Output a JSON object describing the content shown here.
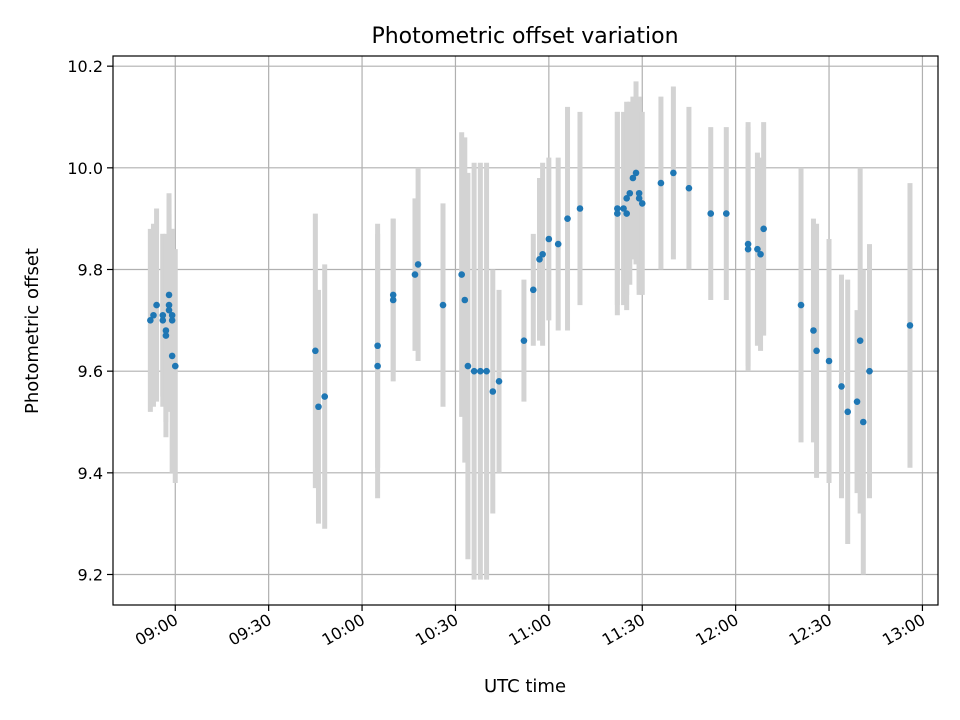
{
  "chart_data": {
    "type": "scatter",
    "title": "Photometric offset variation",
    "xlabel": "UTC time",
    "ylabel": "Photometric offset",
    "xlim": [
      "08:40",
      "13:05"
    ],
    "ylim": [
      9.14,
      10.22
    ],
    "x_ticks": [
      "09:00",
      "09:30",
      "10:00",
      "10:30",
      "11:00",
      "11:30",
      "12:00",
      "12:30",
      "13:00"
    ],
    "y_ticks": [
      9.2,
      9.4,
      9.6,
      9.8,
      10.0,
      10.2
    ],
    "grid": true,
    "colors": {
      "points": "#1f77b4",
      "errorbars": "#d3d3d3"
    },
    "series": [
      {
        "x": [
          "08:52",
          "08:53",
          "08:54",
          "08:56",
          "08:56",
          "08:57",
          "08:57",
          "08:58",
          "08:58",
          "08:58",
          "08:59",
          "08:59",
          "08:59",
          "09:00",
          "09:45",
          "09:46",
          "09:48",
          "10:05",
          "10:05",
          "10:10",
          "10:10",
          "10:17",
          "10:18",
          "10:26",
          "10:32",
          "10:33",
          "10:34",
          "10:36",
          "10:38",
          "10:40",
          "10:42",
          "10:44",
          "10:52",
          "10:55",
          "10:57",
          "10:58",
          "11:00",
          "11:03",
          "11:06",
          "11:10",
          "11:22",
          "11:22",
          "11:24",
          "11:25",
          "11:25",
          "11:26",
          "11:27",
          "11:28",
          "11:29",
          "11:29",
          "11:30",
          "11:36",
          "11:40",
          "11:45",
          "11:52",
          "11:57",
          "12:04",
          "12:04",
          "12:07",
          "12:08",
          "12:09",
          "12:21",
          "12:25",
          "12:26",
          "12:30",
          "12:34",
          "12:36",
          "12:39",
          "12:40",
          "12:41",
          "12:43",
          "12:56"
        ],
        "y": [
          9.7,
          9.71,
          9.73,
          9.71,
          9.7,
          9.67,
          9.68,
          9.73,
          9.72,
          9.75,
          9.71,
          9.7,
          9.63,
          9.61,
          9.64,
          9.53,
          9.55,
          9.65,
          9.61,
          9.75,
          9.74,
          9.79,
          9.81,
          9.73,
          9.79,
          9.74,
          9.61,
          9.6,
          9.6,
          9.6,
          9.56,
          9.58,
          9.66,
          9.76,
          9.82,
          9.83,
          9.86,
          9.85,
          9.9,
          9.92,
          9.92,
          9.91,
          9.92,
          9.91,
          9.94,
          9.95,
          9.98,
          9.99,
          9.95,
          9.94,
          9.93,
          9.97,
          9.99,
          9.96,
          9.91,
          9.91,
          9.85,
          9.84,
          9.84,
          9.83,
          9.88,
          9.73,
          9.68,
          9.64,
          9.62,
          9.57,
          9.52,
          9.54,
          9.66,
          9.5,
          9.6,
          9.69
        ],
        "error": [
          0.18,
          0.18,
          0.19,
          0.16,
          0.17,
          0.2,
          0.18,
          0.21,
          0.19,
          0.2,
          0.17,
          0.18,
          0.23,
          0.23,
          0.27,
          0.23,
          0.26,
          0.24,
          0.26,
          0.15,
          0.16,
          0.15,
          0.19,
          0.2,
          0.28,
          0.32,
          0.38,
          0.41,
          0.41,
          0.41,
          0.24,
          0.18,
          0.12,
          0.11,
          0.16,
          0.18,
          0.16,
          0.17,
          0.22,
          0.19,
          0.19,
          0.2,
          0.19,
          0.19,
          0.19,
          0.18,
          0.16,
          0.18,
          0.19,
          0.19,
          0.18,
          0.17,
          0.17,
          0.16,
          0.17,
          0.17,
          0.24,
          0.24,
          0.19,
          0.19,
          0.21,
          0.27,
          0.22,
          0.25,
          0.24,
          0.22,
          0.26,
          0.18,
          0.34,
          0.3,
          0.25,
          0.28
        ]
      }
    ]
  }
}
